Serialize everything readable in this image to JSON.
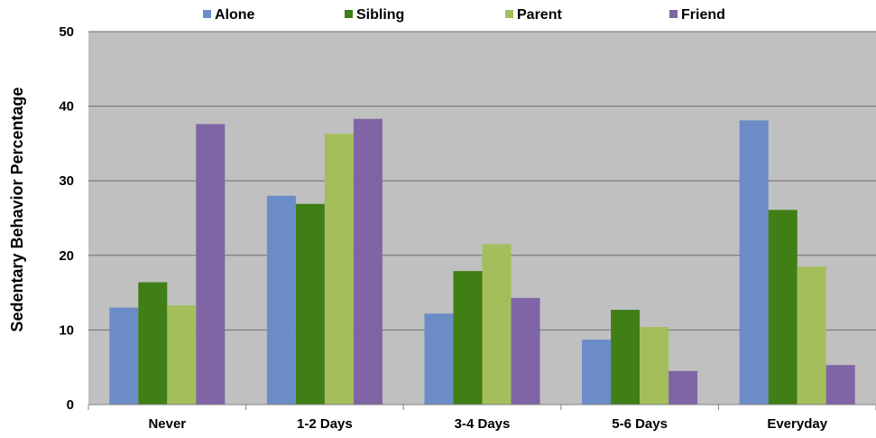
{
  "chart_data": {
    "type": "bar",
    "title": "",
    "xlabel": "",
    "ylabel": "Sedentary Behavior Percentage",
    "ylim": [
      0,
      50
    ],
    "yticks": [
      "0",
      "10",
      "20",
      "30",
      "40",
      "50"
    ],
    "grid": true,
    "legend_position": "top",
    "plot_background": "#c0c0c0",
    "categories": [
      "Never",
      "1-2 Days",
      "3-4 Days",
      "5-6 Days",
      "Everyday"
    ],
    "series": [
      {
        "name": "Alone",
        "color": "#6b8cc7",
        "values": [
          13.0,
          28.0,
          12.2,
          8.7,
          38.1
        ]
      },
      {
        "name": "Sibling",
        "color": "#3f7f16",
        "values": [
          16.4,
          26.9,
          17.9,
          12.7,
          26.1
        ]
      },
      {
        "name": "Parent",
        "color": "#a4be5c",
        "values": [
          13.3,
          36.3,
          21.5,
          10.4,
          18.5
        ]
      },
      {
        "name": "Friend",
        "color": "#7f65a5",
        "values": [
          37.6,
          38.3,
          14.3,
          4.5,
          5.3
        ]
      }
    ]
  }
}
